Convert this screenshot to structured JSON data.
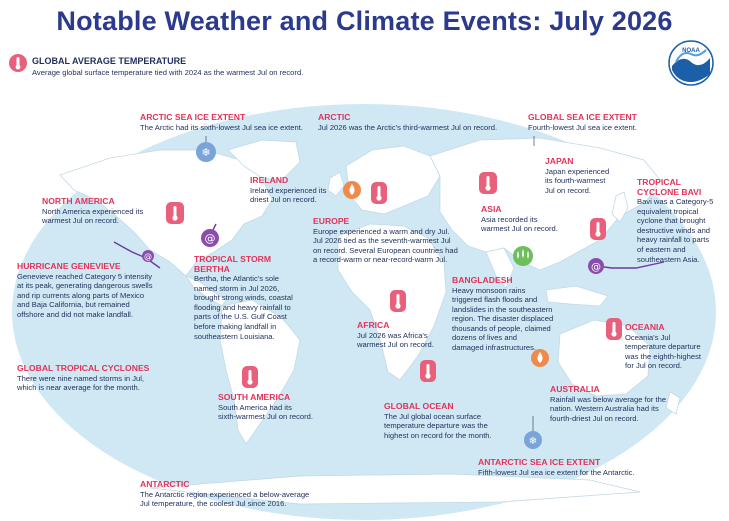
{
  "title": "Notable Weather and Climate Events: July 2026",
  "logo": {
    "text": "NOAA"
  },
  "colors": {
    "title": "#2b3a8c",
    "heading": "#e0345a",
    "body": "#1f2f5a",
    "ocean": "#cfe8f4",
    "land": "#ffffff",
    "thermometer": "#e8607b",
    "drought": "#f08a4b",
    "flood": "#6cbf5a",
    "ice": "#7aa4d8",
    "storm": "#8a4dab"
  },
  "global_avg": {
    "heading": "GLOBAL AVERAGE TEMPERATURE",
    "text": "Average global surface temperature tied with 2024 as the warmest Jul on record.",
    "icon": "thermometer-icon"
  },
  "events": {
    "arctic_ice": {
      "heading": "ARCTIC SEA ICE EXTENT",
      "lines": [
        "The Arctic had its sixth-lowest Jul sea ice extent."
      ]
    },
    "arctic": {
      "heading": "ARCTIC",
      "lines": [
        "Jul 2026 was the Arctic's third-warmest Jul on record."
      ]
    },
    "global_ice": {
      "heading": "GLOBAL SEA ICE EXTENT",
      "lines": [
        "Fourth-lowest Jul sea ice extent."
      ]
    },
    "ireland": {
      "heading": "IRELAND",
      "lines": [
        "Ireland experienced its",
        "driest Jul on record."
      ]
    },
    "japan": {
      "heading": "JAPAN",
      "lines": [
        "Japan experienced",
        "its fourth-warmest",
        "Jul on record."
      ]
    },
    "north_america": {
      "heading": "NORTH AMERICA",
      "lines": [
        "North America experienced its",
        "warmest Jul on record."
      ]
    },
    "bavi": {
      "heading": "TROPICAL\nCYCLONE BAVI",
      "lines": [
        "Bavi was a Category-5",
        "equivalent tropical",
        "cyclone that brought",
        "destructive winds and",
        "heavy rainfall to parts",
        "of eastern and",
        "southeastern Asia."
      ]
    },
    "europe": {
      "heading": "EUROPE",
      "lines": [
        "Europe experienced a warm and dry Jul.",
        "Jul 2026 tied as the seventh-warmest Jul",
        "on record. Several European countries had",
        "a record-warm or near-record-warm Jul."
      ]
    },
    "asia": {
      "heading": "ASIA",
      "lines": [
        "Asia recorded its",
        "warmest Jul on record."
      ]
    },
    "genevieve": {
      "heading": "HURRICANE GENEVIEVE",
      "lines": [
        "Genevieve reached Category 5 intensity",
        "at its peak, generating dangerous swells",
        "and rip currents along parts of Mexico",
        "and Baja California, but remained",
        "offshore and did not make landfall."
      ]
    },
    "bertha": {
      "heading": "TROPICAL STORM\nBERTHA",
      "lines": [
        "Bertha, the Atlantic's sole",
        "named storm in Jul 2026,",
        "brought strong winds, coastal",
        "flooding and heavy rainfall to",
        "parts of the U.S. Gulf Coast",
        "before making landfall in",
        "southeastern Louisiana."
      ]
    },
    "bangladesh": {
      "heading": "BANGLADESH",
      "lines": [
        "Heavy monsoon rains",
        "triggered flash floods and",
        "landslides in the southeastern",
        "region. The disaster displaced",
        "thousands of people, claimed",
        "dozens of lives and",
        "damaged infrastructures."
      ]
    },
    "oceania": {
      "heading": "OCEANIA",
      "lines": [
        "Oceania's Jul",
        "temperature departure",
        "was the eighth-highest",
        "for Jul on record."
      ]
    },
    "africa": {
      "heading": "AFRICA",
      "lines": [
        "Jul 2026 was Africa's",
        "warmest Jul on record."
      ]
    },
    "global_tc": {
      "heading": "GLOBAL TROPICAL CYCLONES",
      "lines": [
        "There were nine named storms in Jul,",
        "which is near average for the month."
      ]
    },
    "australia": {
      "heading": "AUSTRALIA",
      "lines": [
        "Rainfall was below average for the",
        "nation. Western Australia had its",
        "fourth-driest Jul on record."
      ]
    },
    "south_america": {
      "heading": "SOUTH AMERICA",
      "lines": [
        "South America had its",
        "sixth-warmest Jul on record."
      ]
    },
    "global_ocean": {
      "heading": "GLOBAL OCEAN",
      "lines": [
        "The Jul global ocean surface",
        "temperature departure was the",
        "highest on record for the month."
      ]
    },
    "antarctic_ice": {
      "heading": "ANTARCTIC SEA ICE EXTENT",
      "lines": [
        "Fifth-lowest Jul sea ice extent for the Antarctic."
      ]
    },
    "antarctic": {
      "heading": "ANTARCTIC",
      "lines": [
        "The Antarctic region experienced a below-average",
        "Jul temperature, the coolest Jul since 2016."
      ]
    }
  }
}
